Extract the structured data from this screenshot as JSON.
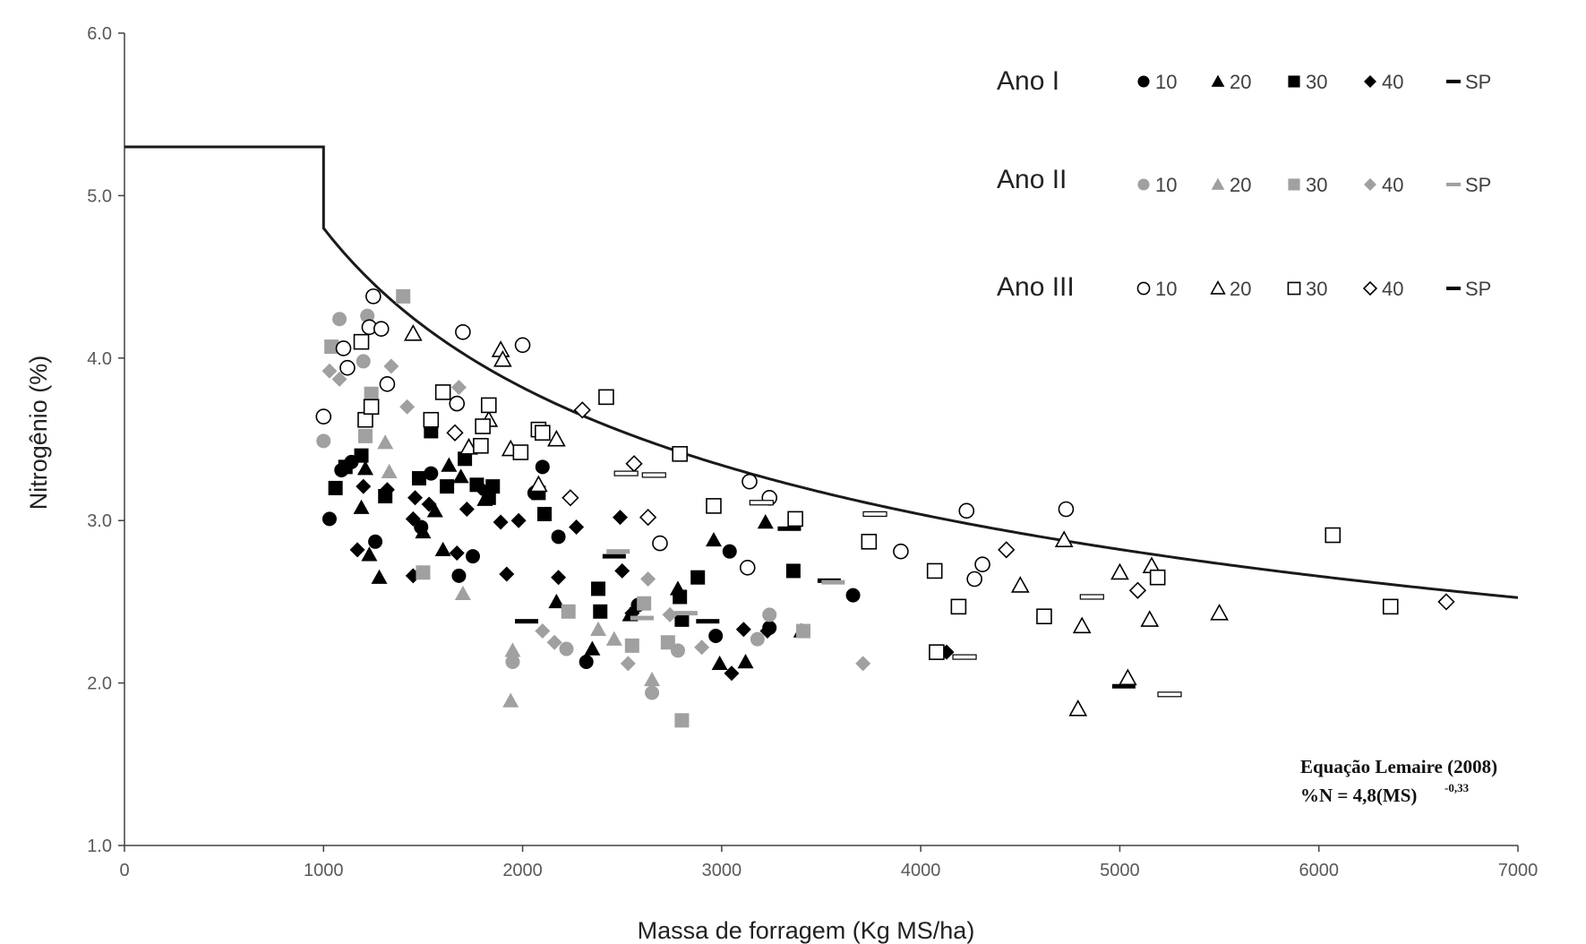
{
  "chart_data": {
    "type": "scatter",
    "title": "",
    "xlabel": "Massa de forragem (Kg MS/ha)",
    "ylabel": "Nitrogênio (%)",
    "xlim": [
      0,
      7000
    ],
    "ylim": [
      1.0,
      6.0
    ],
    "x_ticks": [
      "0",
      "1000",
      "2000",
      "3000",
      "4000",
      "5000",
      "6000",
      "7000"
    ],
    "y_ticks": [
      "1.0",
      "2.0",
      "3.0",
      "4.0",
      "5.0",
      "6.0"
    ],
    "grid": false,
    "legend_position": "top-right",
    "legend_groups": [
      {
        "label": "Ano I",
        "style": "filled-black",
        "items": [
          "10",
          "20",
          "30",
          "40",
          "SP"
        ]
      },
      {
        "label": "Ano II",
        "style": "filled-gray",
        "items": [
          "10",
          "20",
          "30",
          "40",
          "SP"
        ]
      },
      {
        "label": "Ano III",
        "style": "open",
        "items": [
          "10",
          "20",
          "30",
          "40",
          "SP"
        ]
      }
    ],
    "annotation": {
      "line1": "Equação Lemaire (2008)",
      "line2_prefix": "%N = 4,8(MS)",
      "line2_exponent": "-0,33"
    },
    "reference_curve": {
      "plateau_value": 5.3,
      "plateau_until_x": 1000,
      "coefficient": 4.8,
      "exponent": -0.33,
      "x_unit_divisor": 1000,
      "x_max": 7000
    },
    "colors": {
      "ano_i": "#000000",
      "ano_ii": "#a0a0a0",
      "ano_iii": "#ffffff",
      "outline": "#000000",
      "axis": "#404040",
      "curve": "#1a1a1a"
    },
    "series": [
      {
        "year": "Ano I",
        "treatment": "10",
        "marker": "circle",
        "points": [
          [
            1030,
            3.01
          ],
          [
            1090,
            3.31
          ],
          [
            1140,
            3.36
          ],
          [
            1260,
            2.87
          ],
          [
            1490,
            2.96
          ],
          [
            1540,
            3.29
          ],
          [
            1680,
            2.66
          ],
          [
            1750,
            2.78
          ],
          [
            2060,
            3.17
          ],
          [
            2100,
            3.33
          ],
          [
            2180,
            2.9
          ],
          [
            2320,
            2.13
          ],
          [
            2580,
            2.48
          ],
          [
            2970,
            2.29
          ],
          [
            3040,
            2.81
          ],
          [
            3240,
            2.34
          ],
          [
            3660,
            2.54
          ]
        ]
      },
      {
        "year": "Ano I",
        "treatment": "20",
        "marker": "triangle",
        "points": [
          [
            1190,
            3.08
          ],
          [
            1210,
            3.32
          ],
          [
            1230,
            2.79
          ],
          [
            1280,
            2.65
          ],
          [
            1500,
            2.93
          ],
          [
            1560,
            3.06
          ],
          [
            1600,
            2.82
          ],
          [
            1630,
            3.34
          ],
          [
            1690,
            3.27
          ],
          [
            1810,
            3.13
          ],
          [
            2170,
            2.5
          ],
          [
            2350,
            2.21
          ],
          [
            2540,
            2.42
          ],
          [
            2780,
            2.58
          ],
          [
            2960,
            2.88
          ],
          [
            2990,
            2.12
          ],
          [
            3120,
            2.13
          ],
          [
            3220,
            2.99
          ],
          [
            3400,
            2.32
          ]
        ]
      },
      {
        "year": "Ano I",
        "treatment": "30",
        "marker": "square",
        "points": [
          [
            1060,
            3.2
          ],
          [
            1110,
            3.33
          ],
          [
            1190,
            3.4
          ],
          [
            1310,
            3.15
          ],
          [
            1480,
            3.26
          ],
          [
            1540,
            3.55
          ],
          [
            1620,
            3.21
          ],
          [
            1710,
            3.38
          ],
          [
            1770,
            3.22
          ],
          [
            1830,
            3.14
          ],
          [
            1850,
            3.21
          ],
          [
            2080,
            3.17
          ],
          [
            2110,
            3.04
          ],
          [
            2380,
            2.58
          ],
          [
            2390,
            2.44
          ],
          [
            2790,
            2.53
          ],
          [
            2800,
            2.39
          ],
          [
            2880,
            2.65
          ],
          [
            3360,
            2.69
          ]
        ]
      },
      {
        "year": "Ano I",
        "treatment": "40",
        "marker": "diamond",
        "points": [
          [
            1170,
            2.82
          ],
          [
            1200,
            3.21
          ],
          [
            1320,
            3.19
          ],
          [
            1450,
            2.66
          ],
          [
            1450,
            3.01
          ],
          [
            1460,
            3.14
          ],
          [
            1530,
            3.1
          ],
          [
            1670,
            2.8
          ],
          [
            1720,
            3.07
          ],
          [
            1790,
            3.2
          ],
          [
            1890,
            2.99
          ],
          [
            1920,
            2.67
          ],
          [
            1980,
            3.0
          ],
          [
            2180,
            2.65
          ],
          [
            2270,
            2.96
          ],
          [
            2490,
            3.02
          ],
          [
            2500,
            2.69
          ],
          [
            2550,
            2.43
          ],
          [
            3050,
            2.06
          ],
          [
            3110,
            2.33
          ],
          [
            3230,
            2.32
          ],
          [
            4130,
            2.19
          ]
        ]
      },
      {
        "year": "Ano I",
        "treatment": "SP",
        "marker": "dash",
        "points": [
          [
            2020,
            2.38
          ],
          [
            2460,
            2.78
          ],
          [
            2930,
            2.38
          ],
          [
            3340,
            2.95
          ],
          [
            3540,
            2.63
          ],
          [
            5020,
            1.98
          ]
        ]
      },
      {
        "year": "Ano II",
        "treatment": "10",
        "marker": "circle",
        "points": [
          [
            1000,
            3.49
          ],
          [
            1080,
            4.24
          ],
          [
            1200,
            3.98
          ],
          [
            1220,
            4.26
          ],
          [
            1950,
            2.13
          ],
          [
            2220,
            2.21
          ],
          [
            2650,
            1.94
          ],
          [
            2780,
            2.2
          ],
          [
            3180,
            2.27
          ],
          [
            3240,
            2.42
          ]
        ]
      },
      {
        "year": "Ano II",
        "treatment": "20",
        "marker": "triangle",
        "points": [
          [
            1310,
            3.48
          ],
          [
            1330,
            3.3
          ],
          [
            1700,
            2.55
          ],
          [
            1940,
            1.89
          ],
          [
            1950,
            2.2
          ],
          [
            2380,
            2.33
          ],
          [
            2460,
            2.27
          ],
          [
            2650,
            2.02
          ]
        ]
      },
      {
        "year": "Ano II",
        "treatment": "30",
        "marker": "square",
        "points": [
          [
            1040,
            4.07
          ],
          [
            1210,
            3.52
          ],
          [
            1240,
            3.78
          ],
          [
            1400,
            4.38
          ],
          [
            1500,
            2.68
          ],
          [
            2230,
            2.44
          ],
          [
            2550,
            2.23
          ],
          [
            2610,
            2.49
          ],
          [
            2730,
            2.25
          ],
          [
            2800,
            1.77
          ],
          [
            3410,
            2.32
          ]
        ]
      },
      {
        "year": "Ano II",
        "treatment": "40",
        "marker": "diamond",
        "points": [
          [
            1030,
            3.92
          ],
          [
            1080,
            3.87
          ],
          [
            1340,
            3.95
          ],
          [
            1420,
            3.7
          ],
          [
            1680,
            3.82
          ],
          [
            2100,
            2.32
          ],
          [
            2160,
            2.25
          ],
          [
            2530,
            2.12
          ],
          [
            2630,
            2.64
          ],
          [
            2740,
            2.42
          ],
          [
            2900,
            2.22
          ],
          [
            3710,
            2.12
          ]
        ]
      },
      {
        "year": "Ano II",
        "treatment": "SP",
        "marker": "dash",
        "points": [
          [
            2480,
            2.81
          ],
          [
            2600,
            2.4
          ],
          [
            2820,
            2.43
          ],
          [
            3560,
            2.62
          ]
        ]
      },
      {
        "year": "Ano III",
        "treatment": "10",
        "marker": "circle",
        "points": [
          [
            1000,
            3.64
          ],
          [
            1100,
            4.06
          ],
          [
            1120,
            3.94
          ],
          [
            1230,
            4.19
          ],
          [
            1250,
            4.38
          ],
          [
            1290,
            4.18
          ],
          [
            1320,
            3.84
          ],
          [
            1670,
            3.72
          ],
          [
            1700,
            4.16
          ],
          [
            2000,
            4.08
          ],
          [
            2690,
            2.86
          ],
          [
            3130,
            2.71
          ],
          [
            3140,
            3.24
          ],
          [
            3240,
            3.14
          ],
          [
            3900,
            2.81
          ],
          [
            4230,
            3.06
          ],
          [
            4270,
            2.64
          ],
          [
            4310,
            2.73
          ],
          [
            4730,
            3.07
          ]
        ]
      },
      {
        "year": "Ano III",
        "treatment": "20",
        "marker": "triangle",
        "points": [
          [
            1450,
            4.15
          ],
          [
            1730,
            3.45
          ],
          [
            1830,
            3.62
          ],
          [
            1890,
            4.05
          ],
          [
            1900,
            3.99
          ],
          [
            1940,
            3.44
          ],
          [
            2080,
            3.22
          ],
          [
            2170,
            3.5
          ],
          [
            4500,
            2.6
          ],
          [
            4720,
            2.88
          ],
          [
            4790,
            1.84
          ],
          [
            4810,
            2.35
          ],
          [
            5000,
            2.68
          ],
          [
            5040,
            2.03
          ],
          [
            5150,
            2.39
          ],
          [
            5160,
            2.72
          ],
          [
            5500,
            2.43
          ]
        ]
      },
      {
        "year": "Ano III",
        "treatment": "30",
        "marker": "square",
        "points": [
          [
            1190,
            4.1
          ],
          [
            1210,
            3.62
          ],
          [
            1240,
            3.7
          ],
          [
            1540,
            3.62
          ],
          [
            1600,
            3.79
          ],
          [
            1790,
            3.46
          ],
          [
            1800,
            3.58
          ],
          [
            1830,
            3.71
          ],
          [
            1990,
            3.42
          ],
          [
            2080,
            3.56
          ],
          [
            2100,
            3.54
          ],
          [
            2420,
            3.76
          ],
          [
            2790,
            3.41
          ],
          [
            2960,
            3.09
          ],
          [
            3370,
            3.01
          ],
          [
            3740,
            2.87
          ],
          [
            4070,
            2.69
          ],
          [
            4080,
            2.19
          ],
          [
            4190,
            2.47
          ],
          [
            4620,
            2.41
          ],
          [
            5190,
            2.65
          ],
          [
            6070,
            2.91
          ],
          [
            6360,
            2.47
          ]
        ]
      },
      {
        "year": "Ano III",
        "treatment": "40",
        "marker": "diamond",
        "points": [
          [
            1660,
            3.54
          ],
          [
            2240,
            3.14
          ],
          [
            2300,
            3.68
          ],
          [
            2560,
            3.35
          ],
          [
            2630,
            3.02
          ],
          [
            4430,
            2.82
          ],
          [
            5090,
            2.57
          ],
          [
            6640,
            2.5
          ]
        ]
      },
      {
        "year": "Ano III",
        "treatment": "SP",
        "marker": "dash",
        "points": [
          [
            2520,
            3.29
          ],
          [
            2660,
            3.28
          ],
          [
            3200,
            3.11
          ],
          [
            3770,
            3.04
          ],
          [
            4220,
            2.16
          ],
          [
            4860,
            2.53
          ],
          [
            5250,
            1.93
          ]
        ]
      }
    ]
  }
}
